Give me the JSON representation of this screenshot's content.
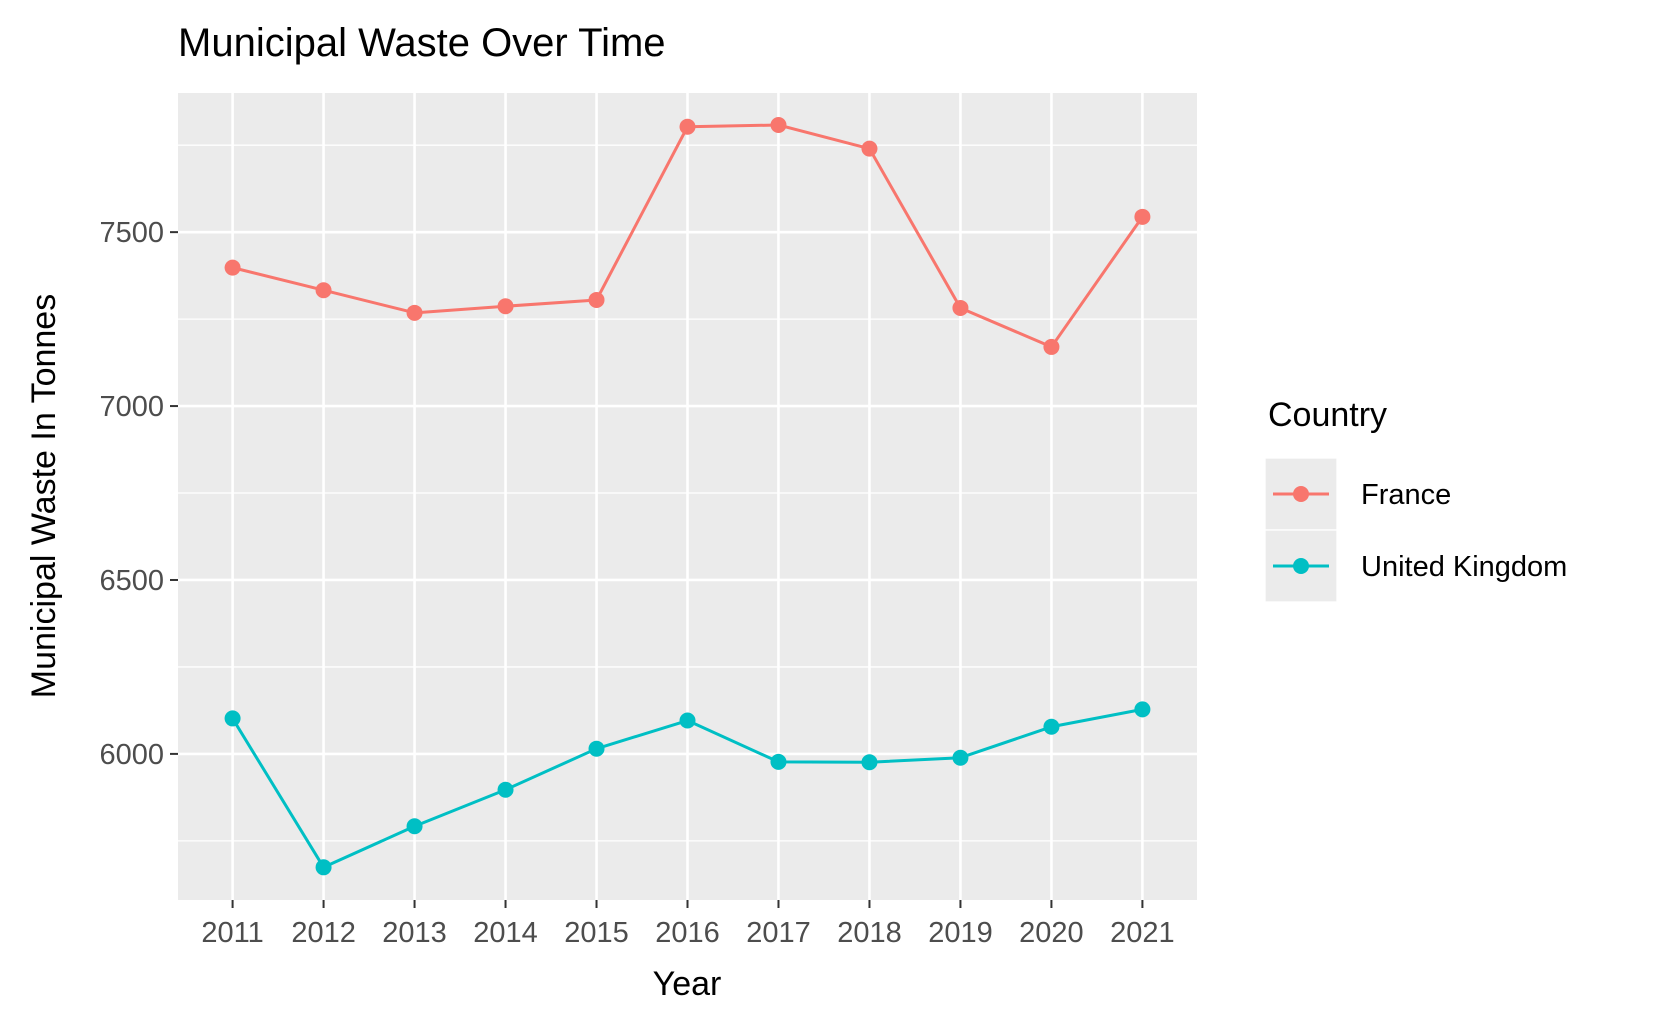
{
  "chart_data": {
    "type": "line",
    "title": "Municipal Waste Over Time",
    "xlabel": "Year",
    "ylabel": "Municipal Waste In Tonnes",
    "x": [
      2011,
      2012,
      2013,
      2014,
      2015,
      2016,
      2017,
      2018,
      2019,
      2020,
      2021
    ],
    "x_tick_labels": [
      "2011",
      "2012",
      "2013",
      "2014",
      "2015",
      "2016",
      "2017",
      "2018",
      "2019",
      "2020",
      "2021"
    ],
    "y_ticks": [
      6000,
      6500,
      7000,
      7500
    ],
    "y_tick_labels": [
      "6000",
      "6500",
      "7000",
      "7500"
    ],
    "xlim": [
      2010.4,
      2021.6
    ],
    "ylim": [
      5580,
      7900
    ],
    "grid": true,
    "legend": {
      "title": "Country",
      "position": "right"
    },
    "series": [
      {
        "name": "France",
        "color": "#F8766D",
        "values": [
          7398,
          7333,
          7268,
          7287,
          7305,
          7803,
          7808,
          7740,
          7282,
          7170,
          7544
        ]
      },
      {
        "name": "United Kingdom",
        "color": "#00BFC4",
        "values": [
          6102,
          5674,
          5792,
          5897,
          6015,
          6096,
          5977,
          5976,
          5989,
          6078,
          6128
        ]
      }
    ]
  }
}
